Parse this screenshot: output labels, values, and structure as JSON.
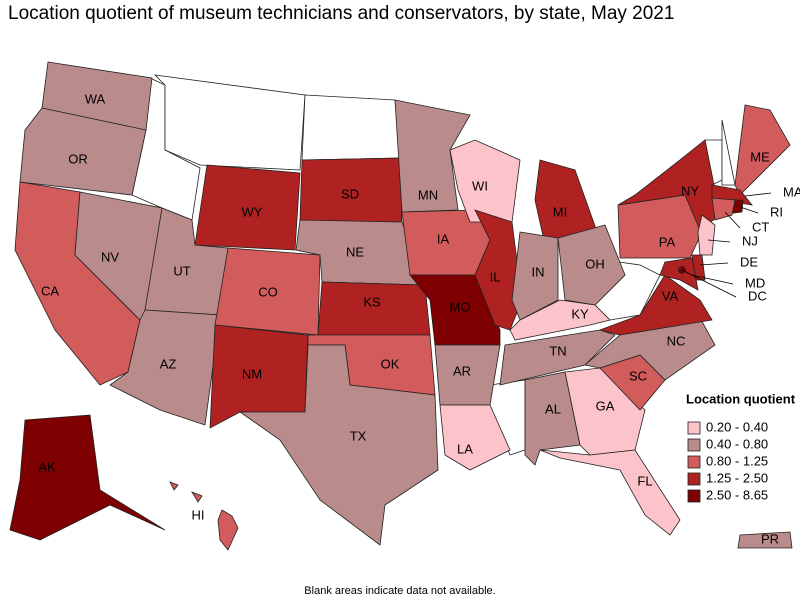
{
  "title": "Location quotient of museum technicians and conservators, by state, May 2021",
  "legend": {
    "title": "Location quotient",
    "items": [
      {
        "label": "0.20 - 0.40",
        "color": "#fcc3cb"
      },
      {
        "label": "0.40 - 0.80",
        "color": "#b98b8b"
      },
      {
        "label": "0.80 - 1.25",
        "color": "#d25c5c"
      },
      {
        "label": "1.25 - 2.50",
        "color": "#b02222"
      },
      {
        "label": "2.50 - 8.65",
        "color": "#7e0000"
      }
    ]
  },
  "states": [
    {
      "label": "WA",
      "color": "#b98b8b"
    },
    {
      "label": "OR",
      "color": "#b98b8b"
    },
    {
      "label": "CA",
      "color": "#d25c5c"
    },
    {
      "label": "NV",
      "color": "#b98b8b"
    },
    {
      "label": "WY",
      "color": "#b02222"
    },
    {
      "label": "UT",
      "color": "#b98b8b"
    },
    {
      "label": "AZ",
      "color": "#b98b8b"
    },
    {
      "label": "CO",
      "color": "#d25c5c"
    },
    {
      "label": "NM",
      "color": "#b02222"
    },
    {
      "label": "SD",
      "color": "#b02222"
    },
    {
      "label": "NE",
      "color": "#b98b8b"
    },
    {
      "label": "KS",
      "color": "#b02222"
    },
    {
      "label": "OK",
      "color": "#d25c5c"
    },
    {
      "label": "TX",
      "color": "#b98b8b"
    },
    {
      "label": "MN",
      "color": "#b98b8b"
    },
    {
      "label": "IA",
      "color": "#d25c5c"
    },
    {
      "label": "MO",
      "color": "#7e0000"
    },
    {
      "label": "AR",
      "color": "#b98b8b"
    },
    {
      "label": "LA",
      "color": "#fcc3cb"
    },
    {
      "label": "WI",
      "color": "#fcc3cb"
    },
    {
      "label": "IL",
      "color": "#b02222"
    },
    {
      "label": "MI",
      "color": "#b02222"
    },
    {
      "label": "IN",
      "color": "#b98b8b"
    },
    {
      "label": "OH",
      "color": "#b98b8b"
    },
    {
      "label": "KY",
      "color": "#fcc3cb"
    },
    {
      "label": "TN",
      "color": "#b98b8b"
    },
    {
      "label": "AL",
      "color": "#b98b8b"
    },
    {
      "label": "GA",
      "color": "#fcc3cb"
    },
    {
      "label": "FL",
      "color": "#fcc3cb"
    },
    {
      "label": "SC",
      "color": "#d25c5c"
    },
    {
      "label": "NC",
      "color": "#b98b8b"
    },
    {
      "label": "VA",
      "color": "#b02222"
    },
    {
      "label": "PA",
      "color": "#d25c5c"
    },
    {
      "label": "NY",
      "color": "#b02222"
    },
    {
      "label": "ME",
      "color": "#d25c5c"
    },
    {
      "label": "MA",
      "color": "#b02222"
    },
    {
      "label": "RI",
      "color": "#7e0000"
    },
    {
      "label": "CT",
      "color": "#d25c5c"
    },
    {
      "label": "NJ",
      "color": "#fcc3cb"
    },
    {
      "label": "DE",
      "color": "#b02222"
    },
    {
      "label": "MD",
      "color": "#b02222"
    },
    {
      "label": "DC",
      "color": "#7e0000"
    },
    {
      "label": "AK",
      "color": "#7e0000"
    },
    {
      "label": "HI",
      "color": "#d25c5c"
    },
    {
      "label": "PR",
      "color": "#b98b8b"
    }
  ],
  "footnote": "Blank areas indicate data not available."
}
